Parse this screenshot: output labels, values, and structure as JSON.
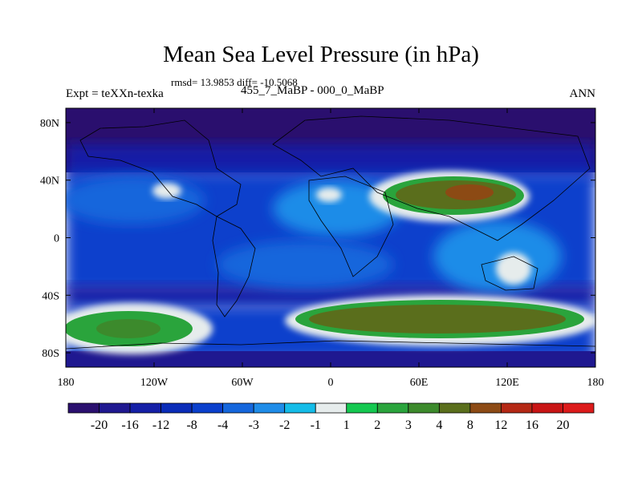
{
  "chart_data": {
    "type": "heatmap",
    "title": "Mean Sea Level Pressure (in hPa)",
    "stats_text": "rmsd= 13.9853 diff= -10.5068",
    "expt_label": "Expt = teXXn-texka",
    "subtitle": "455_7_MaBP - 000_0_MaBP",
    "season": "ANN",
    "xlabel": "",
    "ylabel": "",
    "xlim": [
      -180,
      180
    ],
    "ylim": [
      -90,
      90
    ],
    "x_ticks": [
      {
        "value": -180,
        "label": "180"
      },
      {
        "value": -120,
        "label": "120W"
      },
      {
        "value": -60,
        "label": "60W"
      },
      {
        "value": 0,
        "label": "0"
      },
      {
        "value": 60,
        "label": "60E"
      },
      {
        "value": 120,
        "label": "120E"
      },
      {
        "value": 180,
        "label": "180"
      }
    ],
    "y_ticks": [
      {
        "value": 80,
        "label": "80N"
      },
      {
        "value": 40,
        "label": "40N"
      },
      {
        "value": 0,
        "label": "0"
      },
      {
        "value": -40,
        "label": "40S"
      },
      {
        "value": -80,
        "label": "80S"
      }
    ],
    "levels": [
      -20,
      -16,
      -12,
      -8,
      -4,
      -3,
      -2,
      -1,
      1,
      2,
      3,
      4,
      8,
      12,
      16,
      20
    ],
    "level_labels": [
      "-20",
      "-16",
      "-12",
      "-8",
      "-4",
      "-3",
      "-2",
      "-1",
      "1",
      "2",
      "3",
      "4",
      "8",
      "12",
      "16",
      "20"
    ],
    "colors": [
      "#2a0f6e",
      "#1f1890",
      "#141fa6",
      "#0a2cb8",
      "#0a3fcc",
      "#1466dc",
      "#1e8ce8",
      "#14bce8",
      "#e6ecec",
      "#14c850",
      "#2aa43c",
      "#3c8a2c",
      "#5a6e1c",
      "#8c4a14",
      "#b42814",
      "#c81414",
      "#dc1a1a"
    ],
    "field_description": "Broad low anomaly (-12 to -20) over polar and mid-latitude regions; moderate (-4 to -8) over tropics; positive bands over Tibet/central Asia (~30N, 45-160E), southern ocean (~60S, -20 to 170E) and (~60S, 170E to -100W)",
    "features": [
      {
        "kind": "positive_max",
        "lon": 110,
        "lat": 28,
        "value": 8
      },
      {
        "kind": "positive_max",
        "lon": 80,
        "lat": -58,
        "value": 8
      },
      {
        "kind": "positive_max",
        "lon": -145,
        "lat": -62,
        "value": 4
      }
    ]
  }
}
